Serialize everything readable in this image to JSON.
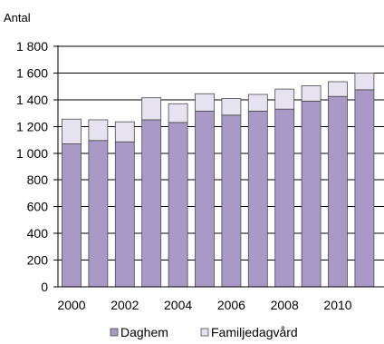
{
  "chart_data": {
    "type": "bar",
    "stacked": true,
    "ylabel": "Antal",
    "ylim": [
      0,
      1800
    ],
    "yticks": [
      0,
      200,
      400,
      600,
      800,
      1000,
      1200,
      1400,
      1600,
      1800
    ],
    "ytick_labels": [
      "0",
      "200",
      "400",
      "600",
      "800",
      "1 000",
      "1 200",
      "1 400",
      "1 600",
      "1 800"
    ],
    "categories": [
      "2000",
      "2001",
      "2002",
      "2003",
      "2004",
      "2005",
      "2006",
      "2007",
      "2008",
      "2009",
      "2010",
      "2011"
    ],
    "xtick_labels": [
      "2000",
      "2002",
      "2004",
      "2006",
      "2008",
      "2010"
    ],
    "grid": "horizontal",
    "legend_position": "bottom",
    "series": [
      {
        "name": "Daghem",
        "color": "#a899c7",
        "values": [
          1070,
          1095,
          1085,
          1250,
          1230,
          1315,
          1285,
          1315,
          1330,
          1390,
          1425,
          1475
        ]
      },
      {
        "name": "Familjedagvård",
        "color": "#e6e2ef",
        "values": [
          185,
          155,
          150,
          165,
          140,
          130,
          125,
          125,
          150,
          115,
          110,
          125
        ]
      }
    ]
  }
}
